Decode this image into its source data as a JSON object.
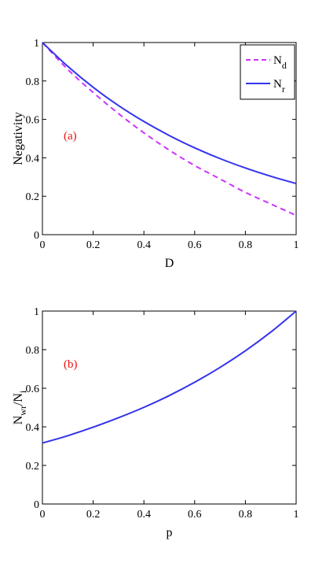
{
  "chart_data": [
    {
      "type": "line",
      "panel_label": "(a)",
      "xlabel": "D",
      "ylabel": "Negativity",
      "xlim": [
        0,
        1
      ],
      "ylim": [
        0,
        1
      ],
      "xticks": [
        "0",
        "0.2",
        "0.4",
        "0.6",
        "0.8",
        "1"
      ],
      "yticks": [
        "0",
        "0.2",
        "0.4",
        "0.6",
        "0.8",
        "1"
      ],
      "grid": false,
      "legend_position": "top-right",
      "series": [
        {
          "name": "N_d",
          "legend_main": "N",
          "legend_sub": "d",
          "color": "#cc33ff",
          "style": "dashed",
          "x": [
            0,
            0.1,
            0.2,
            0.3,
            0.4,
            0.5,
            0.6,
            0.7,
            0.8,
            0.9,
            1.0
          ],
          "y": [
            1.0,
            0.86,
            0.74,
            0.63,
            0.53,
            0.44,
            0.36,
            0.29,
            0.22,
            0.16,
            0.1
          ]
        },
        {
          "name": "N_r",
          "legend_main": "N",
          "legend_sub": "r",
          "color": "#3333ee",
          "style": "solid",
          "x": [
            0,
            0.1,
            0.2,
            0.3,
            0.4,
            0.5,
            0.6,
            0.7,
            0.8,
            0.9,
            1.0
          ],
          "y": [
            1.0,
            0.876,
            0.767,
            0.672,
            0.589,
            0.516,
            0.452,
            0.396,
            0.347,
            0.304,
            0.266
          ]
        }
      ],
      "annotation_color": "#ee1111"
    },
    {
      "type": "line",
      "panel_label": "(b)",
      "xlabel": "p",
      "ylabel_main": "N",
      "ylabel_sub1": "wr",
      "ylabel_mid": "/N",
      "ylabel_sub2": "i",
      "xlim": [
        0,
        1
      ],
      "ylim": [
        0,
        1
      ],
      "xticks": [
        "0",
        "0.2",
        "0.4",
        "0.6",
        "0.8",
        "1"
      ],
      "yticks": [
        "0",
        "0.2",
        "0.4",
        "0.6",
        "0.8",
        "1"
      ],
      "grid": false,
      "series": [
        {
          "color": "#3333ee",
          "style": "solid",
          "x": [
            0,
            0.1,
            0.2,
            0.3,
            0.4,
            0.5,
            0.6,
            0.7,
            0.8,
            0.9,
            1.0
          ],
          "y": [
            0.316,
            0.354,
            0.398,
            0.447,
            0.501,
            0.562,
            0.631,
            0.708,
            0.794,
            0.891,
            1.0
          ]
        }
      ],
      "annotation_color": "#ee1111"
    }
  ]
}
